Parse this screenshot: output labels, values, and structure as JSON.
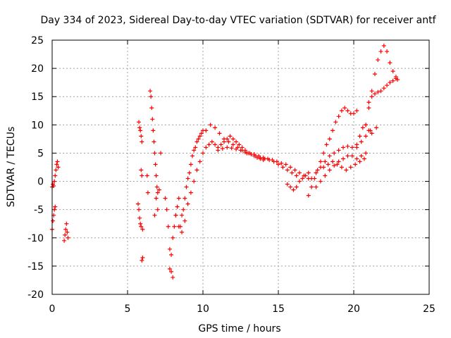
{
  "chart_data": {
    "type": "scatter",
    "title": "Day 334 of 2023, Sidereal Day-to-day VTEC variation (SDTVAR) for receiver antf",
    "xlabel": "GPS time / hours",
    "ylabel": "SDTVAR / TECUs",
    "xlim": [
      0,
      25
    ],
    "ylim": [
      -20,
      25
    ],
    "xticks": [
      0,
      5,
      10,
      15,
      20,
      25
    ],
    "yticks": [
      -20,
      -15,
      -10,
      -5,
      0,
      5,
      10,
      15,
      20,
      25
    ],
    "grid": true,
    "marker": "+",
    "marker_color": "#ff0000",
    "series": [
      {
        "name": "SDTVAR",
        "x": [
          0.0,
          0.05,
          0.1,
          0.15,
          0.2,
          0.25,
          0.3,
          0.35,
          0.4,
          0.0,
          0.05,
          0.1,
          0.15,
          0.2,
          0.8,
          0.85,
          0.9,
          0.95,
          1.0,
          1.05,
          5.7,
          5.75,
          5.8,
          5.85,
          5.9,
          5.95,
          6.0,
          5.75,
          5.8,
          5.85,
          5.9,
          5.95,
          6.0,
          5.9,
          5.95,
          6.3,
          6.35,
          6.5,
          6.55,
          6.6,
          6.65,
          6.7,
          6.75,
          6.8,
          6.85,
          6.9,
          6.95,
          7.0,
          7.1,
          7.2,
          7.0,
          6.9,
          6.8,
          7.5,
          7.6,
          7.7,
          7.8,
          7.9,
          8.0,
          7.8,
          7.9,
          8.0,
          8.1,
          8.2,
          8.3,
          8.4,
          8.5,
          8.6,
          8.7,
          8.8,
          8.9,
          9.0,
          9.1,
          9.2,
          9.3,
          9.4,
          9.5,
          9.6,
          9.7,
          9.8,
          9.9,
          10.0,
          8.2,
          8.4,
          8.6,
          8.8,
          9.0,
          9.2,
          9.4,
          9.6,
          9.8,
          10.0,
          10.2,
          10.4,
          10.6,
          10.8,
          11.0,
          11.2,
          11.4,
          11.6,
          11.8,
          12.0,
          12.2,
          12.4,
          12.6,
          12.8,
          13.0,
          13.2,
          13.4,
          13.6,
          13.8,
          14.0,
          10.2,
          10.5,
          10.8,
          11.1,
          11.4,
          11.7,
          12.0,
          12.3,
          12.6,
          12.9,
          13.2,
          13.5,
          13.8,
          14.1,
          14.4,
          14.7,
          15.0,
          15.3,
          15.6,
          15.9,
          16.2,
          11.0,
          11.3,
          11.6,
          11.9,
          12.2,
          12.5,
          12.8,
          13.1,
          13.4,
          13.7,
          14.0,
          14.3,
          14.6,
          14.9,
          15.2,
          15.5,
          15.8,
          16.1,
          16.4,
          16.7,
          17.0,
          15.6,
          15.8,
          16.0,
          16.2,
          16.4,
          16.6,
          16.8,
          17.0,
          17.0,
          17.2,
          17.4,
          17.6,
          17.8,
          18.0,
          18.2,
          18.4,
          18.6,
          18.8,
          19.0,
          19.2,
          19.4,
          19.6,
          19.8,
          20.0,
          20.2,
          17.2,
          17.5,
          17.8,
          18.1,
          18.4,
          18.7,
          19.0,
          19.3,
          19.6,
          19.9,
          20.2,
          20.5,
          20.8,
          21.1,
          17.5,
          17.8,
          18.1,
          18.4,
          18.7,
          19.0,
          19.3,
          19.6,
          19.9,
          20.2,
          20.5,
          20.8,
          18.0,
          18.3,
          18.6,
          18.9,
          19.2,
          19.5,
          19.8,
          20.1,
          20.4,
          20.7,
          20.8,
          21.0,
          21.2,
          21.4,
          21.6,
          21.8,
          22.0,
          22.2,
          22.4,
          22.6,
          22.8,
          21.0,
          21.2,
          21.4,
          21.6,
          21.8,
          22.0,
          22.2,
          22.4,
          22.6,
          22.8,
          22.9,
          20.2,
          20.4,
          20.6,
          20.8,
          21.0,
          21.2,
          21.5
        ],
        "y": [
          -1.0,
          -0.5,
          -0.8,
          0.0,
          1.0,
          2.0,
          3.0,
          3.5,
          2.5,
          -8.5,
          -7.0,
          -6.0,
          -5.0,
          -4.5,
          -10.5,
          -9.5,
          -8.5,
          -7.5,
          -9.0,
          -10.0,
          -4.0,
          10.5,
          9.5,
          9.0,
          8.0,
          7.0,
          -8.5,
          -5.0,
          -6.5,
          -7.5,
          -8.0,
          -14.0,
          -13.5,
          2.0,
          1.0,
          1.0,
          -2.0,
          16.0,
          15.0,
          13.0,
          11.0,
          9.0,
          7.0,
          5.0,
          3.0,
          1.0,
          -1.0,
          -2.0,
          -1.5,
          5.0,
          -5.0,
          -3.0,
          -6.0,
          -3.0,
          -5.0,
          -8.0,
          -12.0,
          -16.0,
          -17.0,
          -15.5,
          -13.0,
          -10.0,
          -8.0,
          -6.0,
          -4.5,
          -3.0,
          -8.0,
          -6.0,
          -5.0,
          -3.0,
          -1.0,
          0.5,
          1.5,
          3.0,
          4.5,
          5.5,
          6.0,
          7.0,
          7.5,
          8.0,
          8.5,
          9.0,
          -6.0,
          -8.0,
          -9.0,
          -7.0,
          -4.0,
          -2.0,
          0.0,
          2.0,
          3.5,
          5.0,
          6.0,
          6.5,
          7.0,
          6.5,
          6.0,
          6.5,
          7.0,
          7.5,
          8.0,
          7.5,
          7.0,
          6.5,
          6.0,
          5.5,
          5.0,
          4.8,
          4.5,
          4.2,
          4.0,
          3.8,
          9.0,
          10.0,
          9.5,
          8.5,
          7.5,
          7.0,
          6.5,
          6.0,
          5.5,
          5.0,
          4.8,
          4.5,
          4.2,
          4.0,
          3.8,
          3.5,
          3.0,
          2.5,
          2.0,
          1.5,
          1.0,
          5.5,
          5.8,
          6.0,
          5.9,
          5.7,
          5.5,
          5.2,
          5.0,
          4.8,
          4.5,
          4.2,
          4.0,
          3.8,
          3.5,
          3.2,
          3.0,
          2.5,
          2.0,
          1.5,
          1.0,
          0.5,
          -0.5,
          -1.0,
          -1.5,
          -1.0,
          0.0,
          0.5,
          1.0,
          1.5,
          -2.5,
          -1.0,
          0.5,
          2.0,
          3.5,
          5.0,
          6.5,
          7.5,
          9.0,
          10.5,
          11.5,
          12.5,
          13.0,
          12.5,
          12.0,
          12.0,
          12.5,
          0.5,
          1.5,
          2.5,
          3.5,
          4.5,
          5.0,
          5.5,
          6.0,
          6.2,
          6.0,
          6.5,
          7.0,
          8.0,
          9.0,
          -1.0,
          0.0,
          1.0,
          2.0,
          2.8,
          3.5,
          4.0,
          4.5,
          4.5,
          4.0,
          4.5,
          5.0,
          2.5,
          3.0,
          3.5,
          3.0,
          2.5,
          2.0,
          2.5,
          3.0,
          3.5,
          4.0,
          10.0,
          13.0,
          16.0,
          19.0,
          21.5,
          23.0,
          24.0,
          23.0,
          21.0,
          19.5,
          18.5,
          14.0,
          15.0,
          15.5,
          15.8,
          16.0,
          16.5,
          17.0,
          17.5,
          17.8,
          18.2,
          18.0,
          6.0,
          8.0,
          9.5,
          10.0,
          9.0,
          8.5,
          9.5
        ]
      }
    ]
  }
}
